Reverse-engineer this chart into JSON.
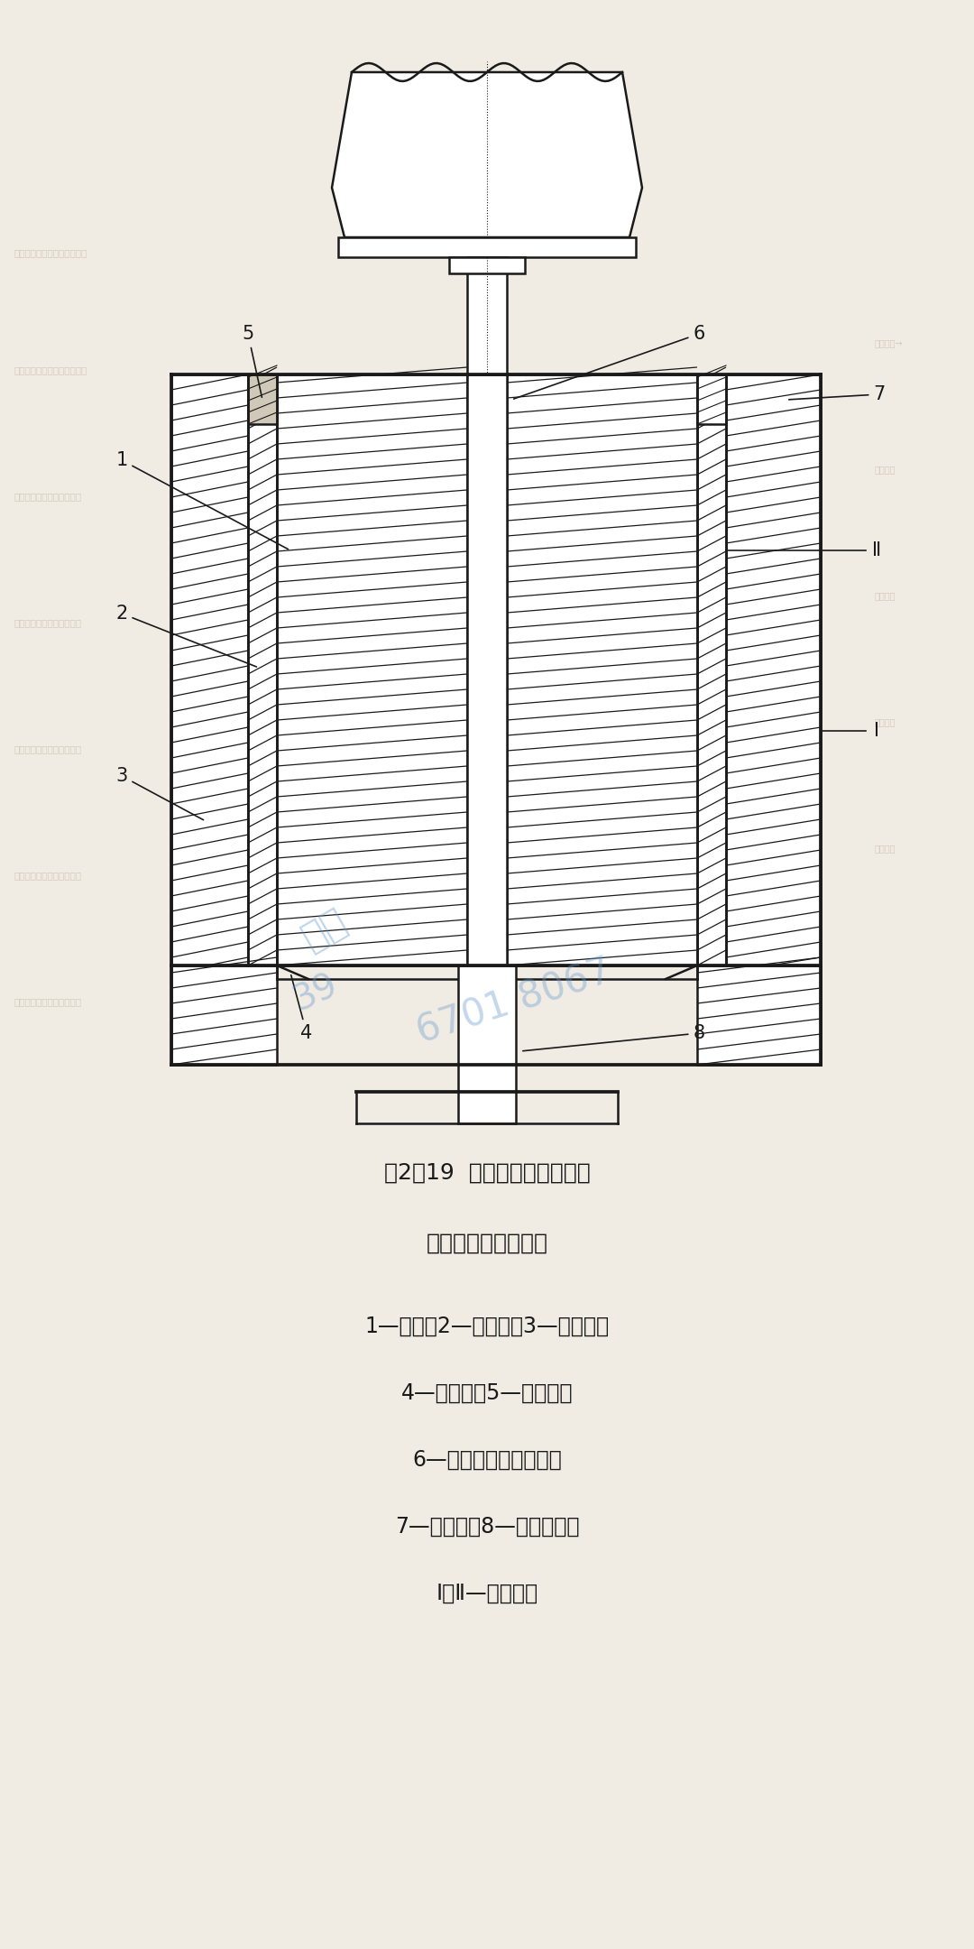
{
  "bg_color": "#f0ece4",
  "line_color": "#1a1a1a",
  "title_line1": "图2－19  实心坯料在穿孔机上",
  "title_line2": "穿孔成空心坯示意图",
  "caption_lines": [
    "1—坯料；2—内衬套；3—穿孔筒；",
    "4—剪切环；5—润滑剂；",
    "6—带穿孔头的穿孔针；",
    "7—对中环；8—下支承杆；",
    "Ⅰ，Ⅱ—滑动表面"
  ],
  "label_color": "#1a1a1a",
  "watermark_color": "#6699cc"
}
